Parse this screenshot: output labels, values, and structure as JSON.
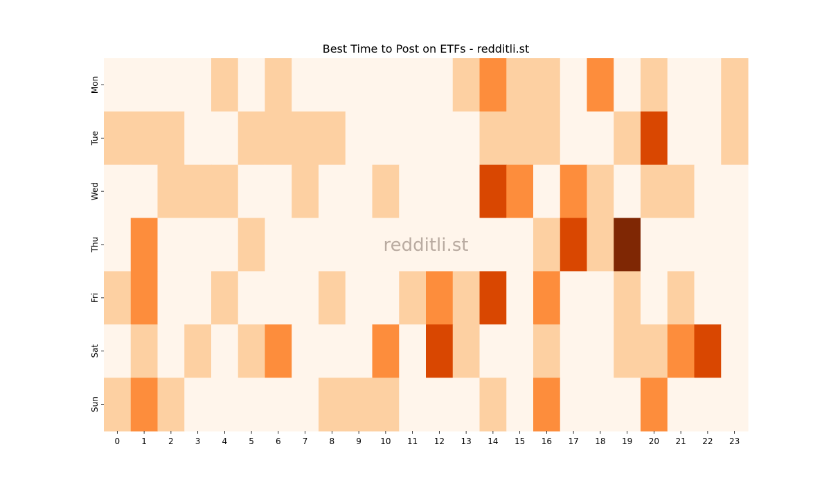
{
  "chart_data": {
    "type": "heatmap",
    "title": "Best Time to Post on ETFs - redditli.st",
    "watermark": "redditli.st",
    "x_labels": [
      "0",
      "1",
      "2",
      "3",
      "4",
      "5",
      "6",
      "7",
      "8",
      "9",
      "10",
      "11",
      "12",
      "13",
      "14",
      "15",
      "16",
      "17",
      "18",
      "19",
      "20",
      "21",
      "22",
      "23"
    ],
    "y_labels": [
      "Mon",
      "Tue",
      "Wed",
      "Thu",
      "Fri",
      "Sat",
      "Sun"
    ],
    "xlabel": "",
    "ylabel": "",
    "color_scale": [
      "#fff5eb",
      "#fdd0a2",
      "#fd8d3c",
      "#d94701",
      "#7f2704"
    ],
    "values": [
      [
        0,
        0,
        0,
        0,
        1,
        0,
        1,
        0,
        0,
        0,
        0,
        0,
        0,
        1,
        2,
        1,
        1,
        0,
        2,
        0,
        1,
        0,
        0,
        1
      ],
      [
        1,
        1,
        1,
        0,
        0,
        1,
        1,
        1,
        1,
        0,
        0,
        0,
        0,
        0,
        1,
        1,
        1,
        0,
        0,
        1,
        3,
        0,
        0,
        1
      ],
      [
        0,
        0,
        1,
        1,
        1,
        0,
        0,
        1,
        0,
        0,
        1,
        0,
        0,
        0,
        3,
        2,
        0,
        2,
        1,
        0,
        1,
        1,
        0,
        0
      ],
      [
        0,
        2,
        0,
        0,
        0,
        1,
        0,
        0,
        0,
        0,
        0,
        0,
        0,
        0,
        0,
        0,
        1,
        3,
        1,
        4,
        0,
        0,
        0,
        0
      ],
      [
        1,
        2,
        0,
        0,
        1,
        0,
        0,
        0,
        1,
        0,
        0,
        1,
        2,
        1,
        3,
        0,
        2,
        0,
        0,
        1,
        0,
        1,
        0,
        0
      ],
      [
        0,
        1,
        0,
        1,
        0,
        1,
        2,
        0,
        0,
        0,
        2,
        0,
        3,
        1,
        0,
        0,
        1,
        0,
        0,
        1,
        1,
        2,
        3,
        0
      ],
      [
        1,
        2,
        1,
        0,
        0,
        0,
        0,
        0,
        1,
        1,
        1,
        0,
        0,
        0,
        1,
        0,
        2,
        0,
        0,
        0,
        2,
        0,
        0,
        0
      ]
    ]
  }
}
